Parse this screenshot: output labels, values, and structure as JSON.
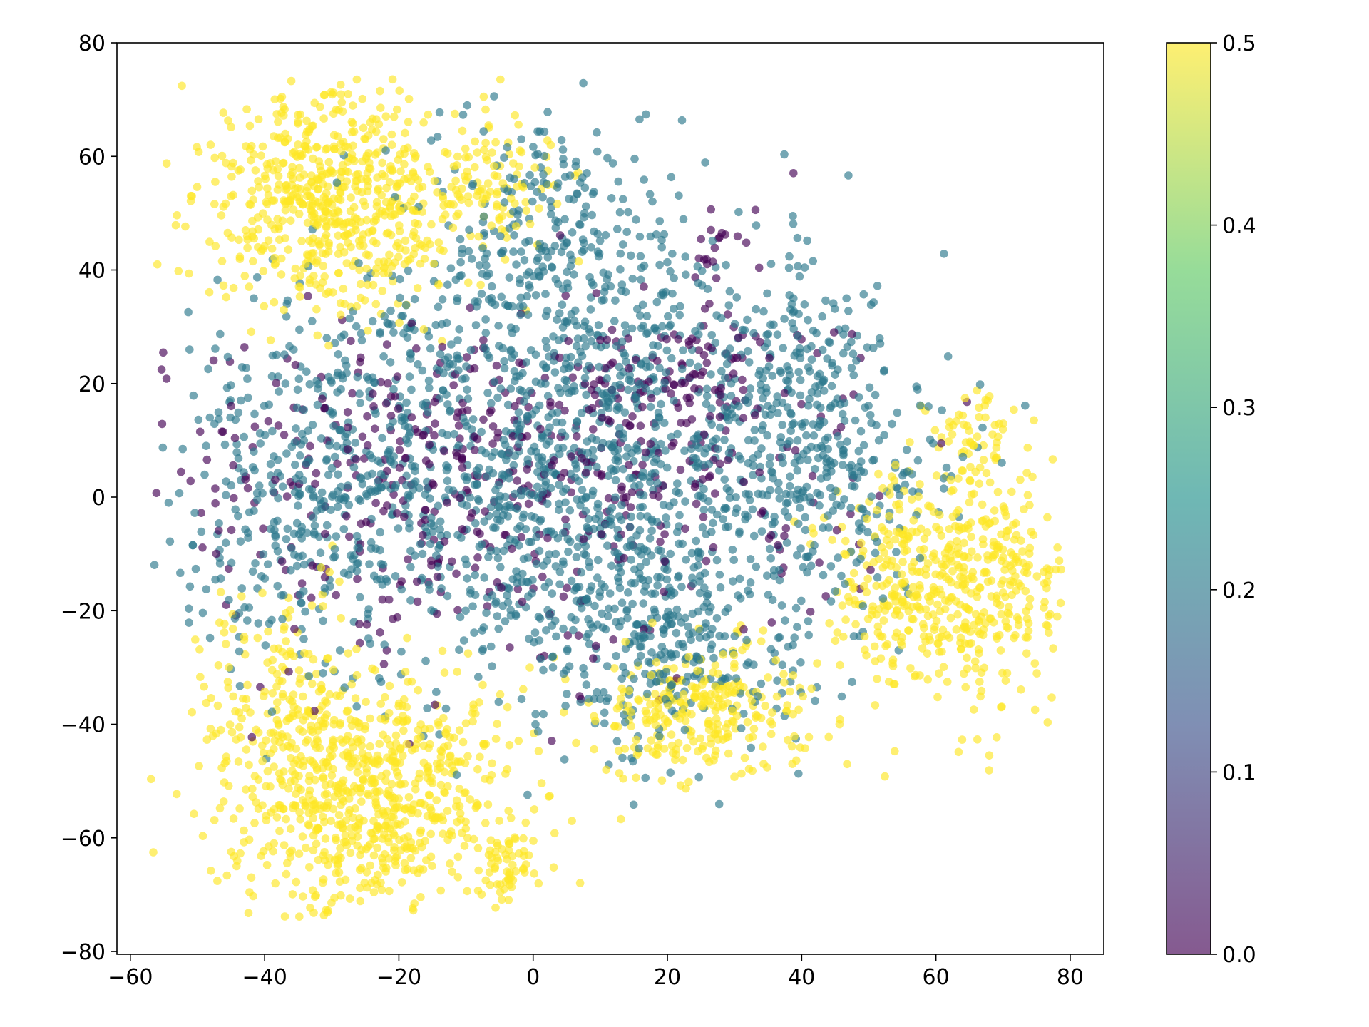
{
  "chart_data": {
    "type": "scatter",
    "title": "",
    "xlabel": "",
    "ylabel": "",
    "xlim": [
      -62,
      85
    ],
    "ylim": [
      -80.5,
      80
    ],
    "xticks": [
      -60,
      -40,
      -20,
      0,
      20,
      40,
      60,
      80
    ],
    "yticks": [
      -80,
      -60,
      -40,
      -20,
      0,
      20,
      40,
      60,
      80
    ],
    "grid": false,
    "marker_alpha": 0.65,
    "colormap": "viridis",
    "colorbar": {
      "range": [
        0.0,
        0.5
      ],
      "ticks": [
        0.0,
        0.1,
        0.2,
        0.3,
        0.4,
        0.5
      ],
      "tick_labels": [
        "0.0",
        "0.1",
        "0.2",
        "0.3",
        "0.4",
        "0.5"
      ],
      "colors": [
        "#440154",
        "#3b528b",
        "#21918c",
        "#5ec962",
        "#fde725"
      ]
    },
    "value_levels": [
      0.0,
      0.2,
      0.5
    ],
    "clusters": [
      {
        "value": 0.5,
        "cx": -30,
        "cy": 52,
        "sx": 10,
        "sy": 10,
        "n": 650
      },
      {
        "value": 0.5,
        "cx": -5,
        "cy": 55,
        "sx": 5,
        "sy": 8,
        "n": 90
      },
      {
        "value": 0.5,
        "cx": -25,
        "cy": -52,
        "sx": 11,
        "sy": 11,
        "n": 750
      },
      {
        "value": 0.5,
        "cx": -38,
        "cy": -32,
        "sx": 6,
        "sy": 8,
        "n": 120
      },
      {
        "value": 0.5,
        "cx": -5,
        "cy": -65,
        "sx": 3,
        "sy": 4,
        "n": 60
      },
      {
        "value": 0.5,
        "cx": 25,
        "cy": -38,
        "sx": 8,
        "sy": 6,
        "n": 280
      },
      {
        "value": 0.5,
        "cx": 62,
        "cy": -15,
        "sx": 9,
        "sy": 10,
        "n": 550
      },
      {
        "value": 0.5,
        "cx": 66,
        "cy": 10,
        "sx": 3,
        "sy": 5,
        "n": 50
      },
      {
        "value": 0.2,
        "cx": 5,
        "cy": 8,
        "sx": 22,
        "sy": 20,
        "n": 1500
      },
      {
        "value": 0.2,
        "cx": -35,
        "cy": 0,
        "sx": 9,
        "sy": 16,
        "n": 260
      },
      {
        "value": 0.2,
        "cx": 42,
        "cy": 10,
        "sx": 8,
        "sy": 13,
        "n": 280
      },
      {
        "value": 0.2,
        "cx": 20,
        "cy": -25,
        "sx": 10,
        "sy": 10,
        "n": 260
      },
      {
        "value": 0.2,
        "cx": 5,
        "cy": 50,
        "sx": 8,
        "sy": 8,
        "n": 140
      },
      {
        "value": 0.0,
        "cx": -5,
        "cy": 3,
        "sx": 25,
        "sy": 16,
        "n": 520
      },
      {
        "value": 0.0,
        "cx": 22,
        "cy": 23,
        "sx": 7,
        "sy": 6,
        "n": 90
      },
      {
        "value": 0.0,
        "cx": 28,
        "cy": 45,
        "sx": 2,
        "sy": 3,
        "n": 15
      }
    ],
    "random_seed": 12345
  }
}
